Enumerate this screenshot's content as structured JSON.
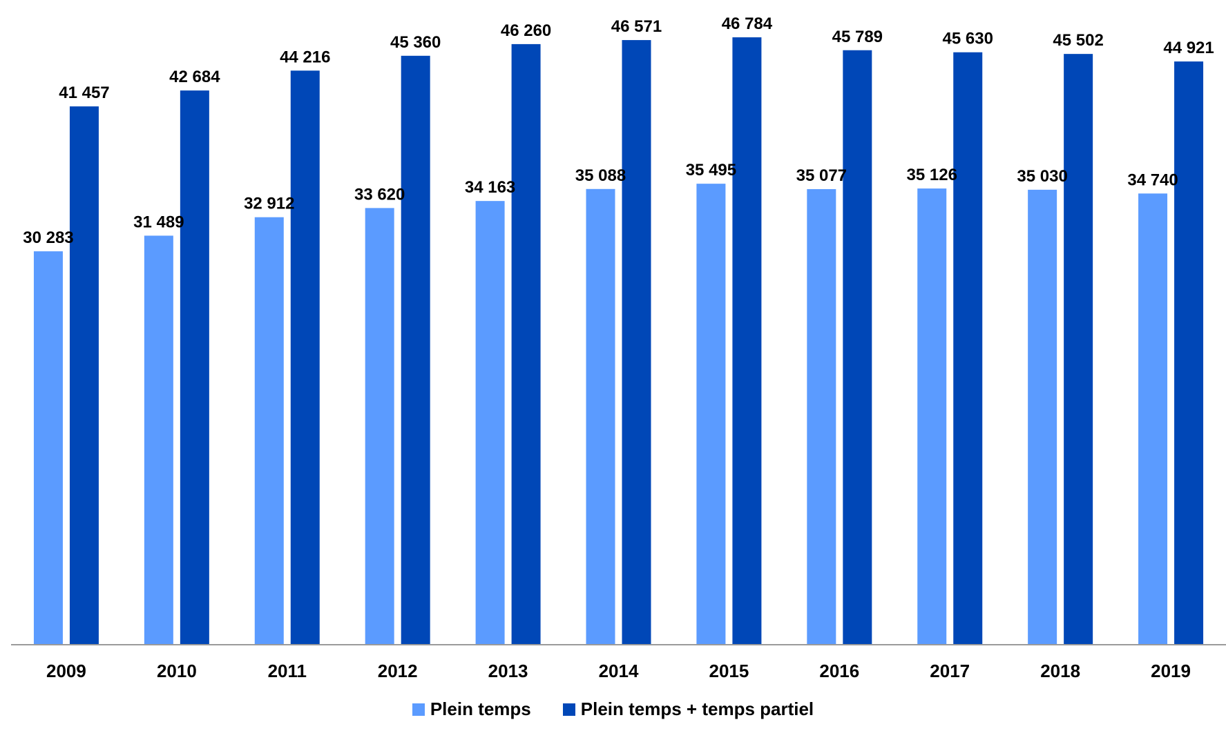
{
  "colors": {
    "plein_temps": "#5b9bff",
    "plein_et_partiel": "#0047b7",
    "axis": "#9a9a9a"
  },
  "legend": {
    "items": [
      {
        "label": "Plein temps",
        "color_key": "plein_temps"
      },
      {
        "label": "Plein temps + temps partiel",
        "color_key": "plein_et_partiel"
      }
    ],
    "placement": "bottom-center"
  },
  "chart_data": {
    "type": "bar",
    "title": "",
    "xlabel": "",
    "ylabel": "",
    "grid": false,
    "ylim": [
      0,
      47000
    ],
    "categories": [
      "2009",
      "2010",
      "2011",
      "2012",
      "2013",
      "2014",
      "2015",
      "2016",
      "2017",
      "2018",
      "2019"
    ],
    "series": [
      {
        "name": "Plein temps",
        "values": [
          30283,
          31489,
          32912,
          33620,
          34163,
          35088,
          35495,
          35077,
          35126,
          35030,
          34740
        ],
        "labels": [
          "30 283",
          "31 489",
          "32 912",
          "33 620",
          "34 163",
          "35 088",
          "35 495",
          "35 077",
          "35 126",
          "35 030",
          "34 740"
        ]
      },
      {
        "name": "Plein temps + temps partiel",
        "values": [
          41457,
          42684,
          44216,
          45360,
          46260,
          46571,
          46784,
          45789,
          45630,
          45502,
          44921
        ],
        "labels": [
          "41 457",
          "42 684",
          "44 216",
          "45 360",
          "46 260",
          "46 571",
          "46 784",
          "45 789",
          "45 630",
          "45 502",
          "44 921"
        ]
      }
    ]
  }
}
